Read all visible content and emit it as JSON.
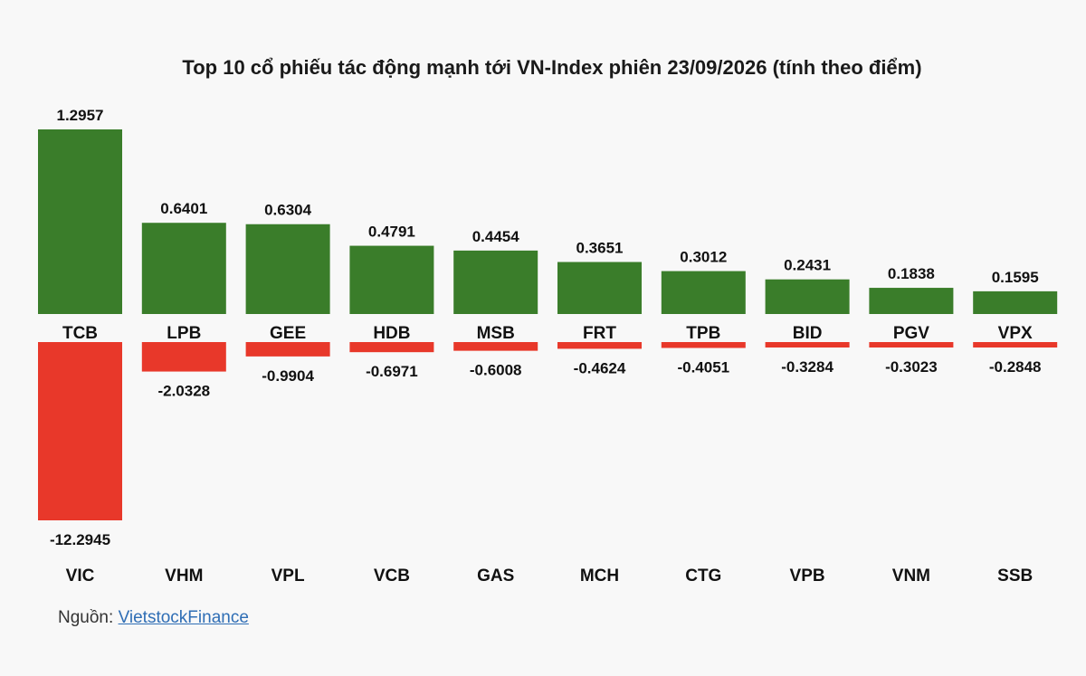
{
  "chart_data": {
    "type": "bar",
    "title": "Top 10 cổ phiếu tác động mạnh tới VN-Index phiên 23/09/2026 (tính theo điểm)",
    "positive": {
      "categories": [
        "TCB",
        "LPB",
        "GEE",
        "HDB",
        "MSB",
        "FRT",
        "TPB",
        "BID",
        "PGV",
        "VPX"
      ],
      "values": [
        1.2957,
        0.6401,
        0.6304,
        0.4791,
        0.4454,
        0.3651,
        0.3012,
        0.2431,
        0.1838,
        0.1595
      ],
      "color": "#3a7d2a"
    },
    "negative": {
      "categories": [
        "VIC",
        "VHM",
        "VPL",
        "VCB",
        "GAS",
        "MCH",
        "CTG",
        "VPB",
        "VNM",
        "SSB"
      ],
      "values": [
        -12.2945,
        -2.0328,
        -0.9904,
        -0.6971,
        -0.6008,
        -0.4624,
        -0.4051,
        -0.3284,
        -0.3023,
        -0.2848
      ],
      "color": "#e8382a"
    },
    "grid": false,
    "legend": "none"
  },
  "source": {
    "label": "Nguồn:",
    "link_text": "VietstockFinance"
  }
}
